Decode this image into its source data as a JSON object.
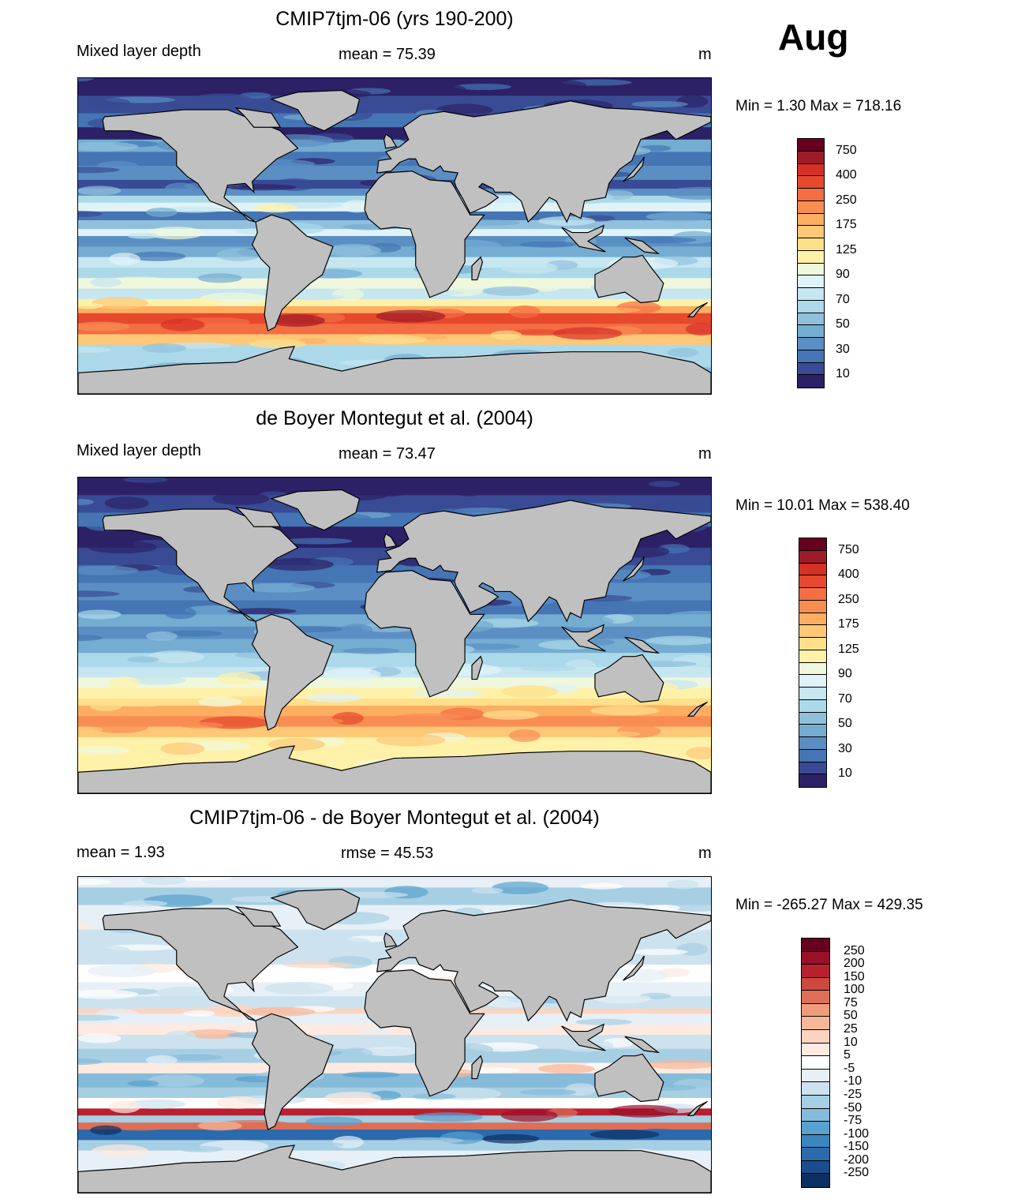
{
  "month": "Aug",
  "units": "m",
  "panels": [
    {
      "title": "CMIP7tjm-06 (yrs 190-200)",
      "left_label": "Mixed layer depth",
      "center_label": "mean =  75.39",
      "right_label": "m",
      "minmax": "Min =    1.30 Max = 718.16",
      "colorbar": "mld"
    },
    {
      "title": "de Boyer Montegut et al. (2004)",
      "left_label": "Mixed layer depth",
      "center_label": "mean =  73.47",
      "right_label": "m",
      "minmax": "Min =  10.01 Max = 538.40",
      "colorbar": "mld"
    },
    {
      "title": "CMIP7tjm-06 - de Boyer Montegut et al. (2004)",
      "left_label": "mean =    1.93",
      "center_label": "rmse =  45.53",
      "right_label": "m",
      "minmax": "Min = -265.27 Max = 429.35",
      "colorbar": "diff"
    }
  ],
  "colorbars": {
    "mld": {
      "labels": [
        "750",
        "400",
        "250",
        "175",
        "125",
        "90",
        "70",
        "50",
        "30",
        "10"
      ],
      "colors": [
        "#67001f",
        "#9e1b28",
        "#d73027",
        "#e6492d",
        "#f46d43",
        "#f88d52",
        "#fdae61",
        "#fec877",
        "#fee08b",
        "#fff2a8",
        "#eff8dc",
        "#e0f3f8",
        "#c6e6f0",
        "#abd9e9",
        "#91c0dd",
        "#74add1",
        "#5b8fc4",
        "#4575b4",
        "#384b94",
        "#2c2166"
      ]
    },
    "diff": {
      "labels": [
        "250",
        "200",
        "150",
        "100",
        "75",
        "50",
        "25",
        "10",
        "5",
        "-5",
        "-10",
        "-25",
        "-50",
        "-75",
        "-100",
        "-150",
        "-200",
        "-250"
      ],
      "colors": [
        "#67001f",
        "#9a1029",
        "#b8202f",
        "#cb4940",
        "#dd6f58",
        "#f09c7b",
        "#f7b799",
        "#fdd4c1",
        "#feeae0",
        "#ffffff",
        "#e6f0f6",
        "#cce2ef",
        "#a7cfe4",
        "#86bbda",
        "#5aa1cf",
        "#3a86be",
        "#2b6aad",
        "#1a4d8c",
        "#0b3061"
      ]
    }
  },
  "land_color": "#c0c0c0"
}
